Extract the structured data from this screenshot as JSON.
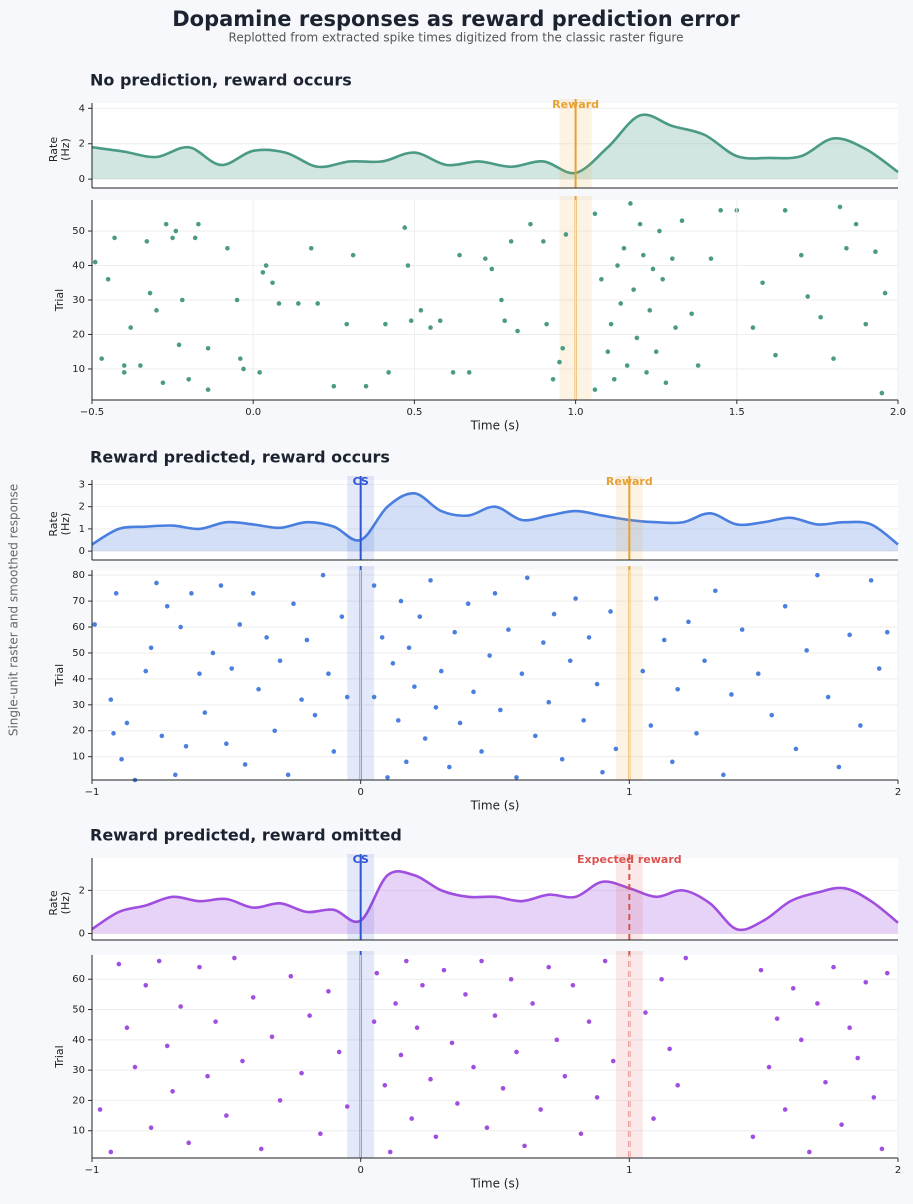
{
  "title": "Dopamine responses as reward prediction error",
  "subtitle": "Replotted from extracted spike times digitized from the classic raster figure",
  "shared_ylabel": "Single-unit raster and smoothed response",
  "chart_data": [
    {
      "type": "line",
      "title": "No prediction, reward occurs",
      "ylabel": [
        "Rate",
        "(Hz)"
      ],
      "color": "#4a9a86",
      "grid": true,
      "x": [
        -0.5,
        -0.4,
        -0.3,
        -0.2,
        -0.1,
        0,
        0.1,
        0.2,
        0.3,
        0.4,
        0.5,
        0.6,
        0.7,
        0.8,
        0.9,
        1.0,
        1.1,
        1.2,
        1.3,
        1.4,
        1.5,
        1.6,
        1.7,
        1.8,
        1.9,
        2.0
      ],
      "values": [
        1.8,
        1.55,
        1.25,
        1.8,
        0.8,
        1.6,
        1.5,
        0.7,
        1.0,
        1.0,
        1.5,
        0.8,
        1.0,
        0.7,
        1.0,
        0.35,
        1.8,
        3.6,
        3.0,
        2.5,
        1.3,
        1.2,
        1.3,
        2.3,
        1.7,
        0.4
      ],
      "xlim": [
        -0.5,
        2.0
      ],
      "ylim": [
        -0.5,
        4.3
      ],
      "yticks": [
        0,
        2,
        4
      ],
      "markers": [
        {
          "x": 1.0,
          "label": "Reward",
          "color": "#e8a030",
          "line_style": "solid"
        }
      ]
    },
    {
      "type": "scatter",
      "xlabel": "Time (s)",
      "ylabel": "Trial",
      "color": "#4a9a86",
      "grid": true,
      "x": [
        -0.49,
        -0.47,
        -0.45,
        -0.43,
        -0.4,
        -0.4,
        -0.38,
        -0.35,
        -0.33,
        -0.32,
        -0.3,
        -0.28,
        -0.27,
        -0.25,
        -0.24,
        -0.23,
        -0.22,
        -0.2,
        -0.18,
        -0.17,
        -0.14,
        -0.14,
        -0.08,
        -0.05,
        -0.04,
        -0.03,
        0.02,
        0.03,
        0.04,
        0.06,
        0.08,
        0.14,
        0.18,
        0.2,
        0.25,
        0.29,
        0.31,
        0.35,
        0.41,
        0.42,
        0.47,
        0.48,
        0.49,
        0.52,
        0.55,
        0.58,
        0.62,
        0.64,
        0.67,
        0.72,
        0.74,
        0.77,
        0.78,
        0.8,
        0.82,
        0.86,
        0.9,
        0.91,
        0.93,
        0.95,
        0.96,
        0.97,
        1.06,
        1.06,
        1.08,
        1.1,
        1.11,
        1.12,
        1.13,
        1.14,
        1.15,
        1.16,
        1.17,
        1.18,
        1.19,
        1.2,
        1.21,
        1.22,
        1.23,
        1.24,
        1.25,
        1.26,
        1.27,
        1.28,
        1.3,
        1.31,
        1.33,
        1.36,
        1.38,
        1.42,
        1.45,
        1.5,
        1.55,
        1.58,
        1.62,
        1.65,
        1.7,
        1.72,
        1.76,
        1.8,
        1.82,
        1.84,
        1.87,
        1.9,
        1.93,
        1.95,
        1.96
      ],
      "y": [
        41,
        13,
        36,
        48,
        11,
        9,
        22,
        11,
        47,
        32,
        27,
        6,
        52,
        48,
        50,
        17,
        30,
        7,
        48,
        52,
        16,
        4,
        45,
        30,
        13,
        10,
        9,
        38,
        40,
        35,
        29,
        29,
        45,
        29,
        5,
        23,
        43,
        5,
        23,
        9,
        51,
        40,
        24,
        27,
        22,
        24,
        9,
        43,
        9,
        42,
        39,
        30,
        24,
        47,
        21,
        52,
        47,
        23,
        7,
        12,
        16,
        49,
        55,
        4,
        36,
        15,
        23,
        7,
        40,
        29,
        45,
        11,
        58,
        33,
        19,
        52,
        43,
        9,
        27,
        39,
        15,
        50,
        36,
        6,
        42,
        22,
        53,
        26,
        11,
        42,
        56,
        56,
        22,
        35,
        14,
        56,
        43,
        31,
        25,
        13,
        57,
        45,
        52,
        23,
        44,
        3,
        32
      ],
      "xlim": [
        -0.5,
        2.0
      ],
      "xticks": [
        {
          "value": -0.5,
          "label": "−0.5"
        },
        {
          "value": 0,
          "label": "0.0"
        },
        0.5,
        {
          "value": 1,
          "label": "1.0"
        },
        1.5,
        {
          "value": 2,
          "label": "2.0"
        }
      ],
      "ylim": [
        1,
        59
      ],
      "yticks": [
        10,
        20,
        30,
        40,
        50
      ]
    },
    {
      "type": "line",
      "title": "Reward predicted, reward occurs",
      "ylabel": [
        "Rate",
        "(Hz)"
      ],
      "color": "#4a7fe0",
      "grid": true,
      "x": [
        -1,
        -0.9,
        -0.8,
        -0.7,
        -0.6,
        -0.5,
        -0.4,
        -0.3,
        -0.2,
        -0.1,
        0,
        0.1,
        0.2,
        0.3,
        0.4,
        0.5,
        0.6,
        0.7,
        0.8,
        0.9,
        1.0,
        1.1,
        1.2,
        1.3,
        1.4,
        1.5,
        1.6,
        1.7,
        1.8,
        1.9,
        2.0
      ],
      "values": [
        0.3,
        1.0,
        1.1,
        1.15,
        1.0,
        1.3,
        1.2,
        1.05,
        1.3,
        1.1,
        0.5,
        2.0,
        2.6,
        1.8,
        1.6,
        2.0,
        1.4,
        1.6,
        1.8,
        1.6,
        1.4,
        1.3,
        1.3,
        1.7,
        1.2,
        1.3,
        1.5,
        1.2,
        1.3,
        1.2,
        0.3
      ],
      "xlim": [
        -1,
        2
      ],
      "ylim": [
        -0.4,
        3.2
      ],
      "yticks": [
        0,
        1,
        2,
        3
      ],
      "markers": [
        {
          "x": 0,
          "label": "CS",
          "color": "#2f55d4",
          "line_style": "solid"
        },
        {
          "x": 1.0,
          "label": "Reward",
          "color": "#e8a030",
          "line_style": "solid"
        }
      ]
    },
    {
      "type": "scatter",
      "xlabel": "Time (s)",
      "ylabel": "Trial",
      "color": "#4a7fe0",
      "grid": true,
      "x": [
        -0.99,
        -0.93,
        -0.92,
        -0.91,
        -0.89,
        -0.87,
        -0.84,
        -0.8,
        -0.78,
        -0.76,
        -0.74,
        -0.72,
        -0.69,
        -0.67,
        -0.65,
        -0.63,
        -0.6,
        -0.58,
        -0.55,
        -0.52,
        -0.5,
        -0.48,
        -0.45,
        -0.43,
        -0.4,
        -0.38,
        -0.35,
        -0.32,
        -0.3,
        -0.27,
        -0.25,
        -0.22,
        -0.2,
        -0.17,
        -0.14,
        -0.12,
        -0.1,
        -0.07,
        -0.05,
        0.05,
        0.05,
        0.08,
        0.1,
        0.12,
        0.14,
        0.15,
        0.17,
        0.18,
        0.2,
        0.22,
        0.24,
        0.26,
        0.28,
        0.3,
        0.33,
        0.35,
        0.37,
        0.4,
        0.42,
        0.45,
        0.48,
        0.5,
        0.52,
        0.55,
        0.58,
        0.6,
        0.62,
        0.65,
        0.68,
        0.7,
        0.72,
        0.75,
        0.78,
        0.8,
        0.83,
        0.85,
        0.88,
        0.9,
        0.93,
        0.95,
        1.05,
        1.08,
        1.1,
        1.13,
        1.16,
        1.18,
        1.22,
        1.25,
        1.28,
        1.32,
        1.35,
        1.38,
        1.42,
        1.48,
        1.53,
        1.58,
        1.62,
        1.66,
        1.7,
        1.74,
        1.78,
        1.82,
        1.86,
        1.9,
        1.93,
        1.96
      ],
      "y": [
        61,
        32,
        19,
        73,
        9,
        23,
        1,
        43,
        52,
        77,
        18,
        68,
        3,
        60,
        14,
        73,
        42,
        27,
        50,
        76,
        15,
        44,
        61,
        7,
        73,
        36,
        56,
        20,
        47,
        3,
        69,
        32,
        55,
        26,
        80,
        42,
        12,
        64,
        33,
        33,
        76,
        56,
        2,
        46,
        24,
        70,
        8,
        52,
        37,
        64,
        17,
        78,
        29,
        43,
        6,
        58,
        23,
        69,
        35,
        12,
        49,
        73,
        28,
        59,
        2,
        42,
        79,
        18,
        54,
        31,
        65,
        9,
        47,
        71,
        24,
        56,
        38,
        4,
        66,
        13,
        43,
        22,
        71,
        55,
        8,
        36,
        62,
        19,
        47,
        74,
        3,
        34,
        59,
        42,
        26,
        68,
        13,
        51,
        80,
        33,
        6,
        57,
        22,
        78,
        44,
        58
      ],
      "xlim": [
        -1,
        2
      ],
      "xticks": [
        {
          "value": -1,
          "label": "−1"
        },
        0,
        1,
        2
      ],
      "ylim": [
        1,
        82
      ],
      "yticks": [
        10,
        20,
        30,
        40,
        50,
        60,
        70,
        80
      ]
    },
    {
      "type": "line",
      "title": "Reward predicted, reward omitted",
      "ylabel": [
        "Rate",
        "(Hz)"
      ],
      "color": "#a04ee0",
      "grid": true,
      "x": [
        -1,
        -0.9,
        -0.8,
        -0.7,
        -0.6,
        -0.5,
        -0.4,
        -0.3,
        -0.2,
        -0.1,
        0,
        0.1,
        0.2,
        0.3,
        0.4,
        0.5,
        0.6,
        0.7,
        0.8,
        0.9,
        1.0,
        1.1,
        1.2,
        1.3,
        1.4,
        1.5,
        1.6,
        1.7,
        1.8,
        1.9,
        2.0
      ],
      "values": [
        0.2,
        1.0,
        1.3,
        1.7,
        1.5,
        1.6,
        1.2,
        1.4,
        1.0,
        1.1,
        0.6,
        2.7,
        2.7,
        2.0,
        1.7,
        1.7,
        1.5,
        1.8,
        1.7,
        2.4,
        2.1,
        1.7,
        2.0,
        1.4,
        0.2,
        0.6,
        1.5,
        1.9,
        2.1,
        1.5,
        0.5
      ],
      "xlim": [
        -1,
        2
      ],
      "ylim": [
        -0.3,
        3.5
      ],
      "yticks": [
        0,
        2
      ],
      "markers": [
        {
          "x": 0,
          "label": "CS",
          "color": "#2f55d4",
          "line_style": "solid"
        },
        {
          "x": 1.0,
          "label": "Expected reward",
          "color": "#d9534f",
          "line_style": "dashed"
        }
      ]
    },
    {
      "type": "scatter",
      "xlabel": "Time (s)",
      "ylabel": "Trial",
      "color": "#a04ee0",
      "grid": true,
      "x": [
        -0.97,
        -0.93,
        -0.9,
        -0.87,
        -0.84,
        -0.8,
        -0.78,
        -0.75,
        -0.72,
        -0.7,
        -0.67,
        -0.64,
        -0.6,
        -0.57,
        -0.54,
        -0.5,
        -0.47,
        -0.44,
        -0.4,
        -0.37,
        -0.33,
        -0.3,
        -0.26,
        -0.22,
        -0.19,
        -0.15,
        -0.12,
        -0.08,
        -0.05,
        0.05,
        0.06,
        0.09,
        0.11,
        0.13,
        0.15,
        0.17,
        0.19,
        0.21,
        0.23,
        0.26,
        0.28,
        0.31,
        0.34,
        0.36,
        0.39,
        0.42,
        0.45,
        0.47,
        0.5,
        0.53,
        0.56,
        0.58,
        0.61,
        0.64,
        0.67,
        0.7,
        0.73,
        0.76,
        0.79,
        0.82,
        0.85,
        0.88,
        0.91,
        0.94,
        1.06,
        1.09,
        1.12,
        1.15,
        1.18,
        1.21,
        1.46,
        1.49,
        1.52,
        1.55,
        1.58,
        1.61,
        1.64,
        1.67,
        1.7,
        1.73,
        1.76,
        1.79,
        1.82,
        1.85,
        1.88,
        1.91,
        1.94,
        1.96
      ],
      "y": [
        17,
        3,
        65,
        44,
        31,
        58,
        11,
        66,
        38,
        23,
        51,
        6,
        64,
        28,
        46,
        15,
        67,
        33,
        54,
        4,
        41,
        20,
        61,
        29,
        48,
        9,
        56,
        36,
        18,
        46,
        62,
        25,
        3,
        52,
        35,
        66,
        14,
        44,
        58,
        27,
        8,
        63,
        39,
        19,
        55,
        31,
        66,
        11,
        48,
        24,
        60,
        36,
        5,
        52,
        17,
        64,
        40,
        28,
        58,
        9,
        46,
        21,
        66,
        33,
        49,
        14,
        60,
        37,
        25,
        67,
        8,
        63,
        31,
        47,
        17,
        57,
        40,
        3,
        52,
        26,
        64,
        12,
        44,
        34,
        59,
        21,
        4,
        62
      ],
      "xlim": [
        -1,
        2
      ],
      "xticks": [
        {
          "value": -1,
          "label": "−1"
        },
        0,
        1,
        2
      ],
      "ylim": [
        1,
        68
      ],
      "yticks": [
        10,
        20,
        30,
        40,
        50,
        60
      ]
    }
  ]
}
